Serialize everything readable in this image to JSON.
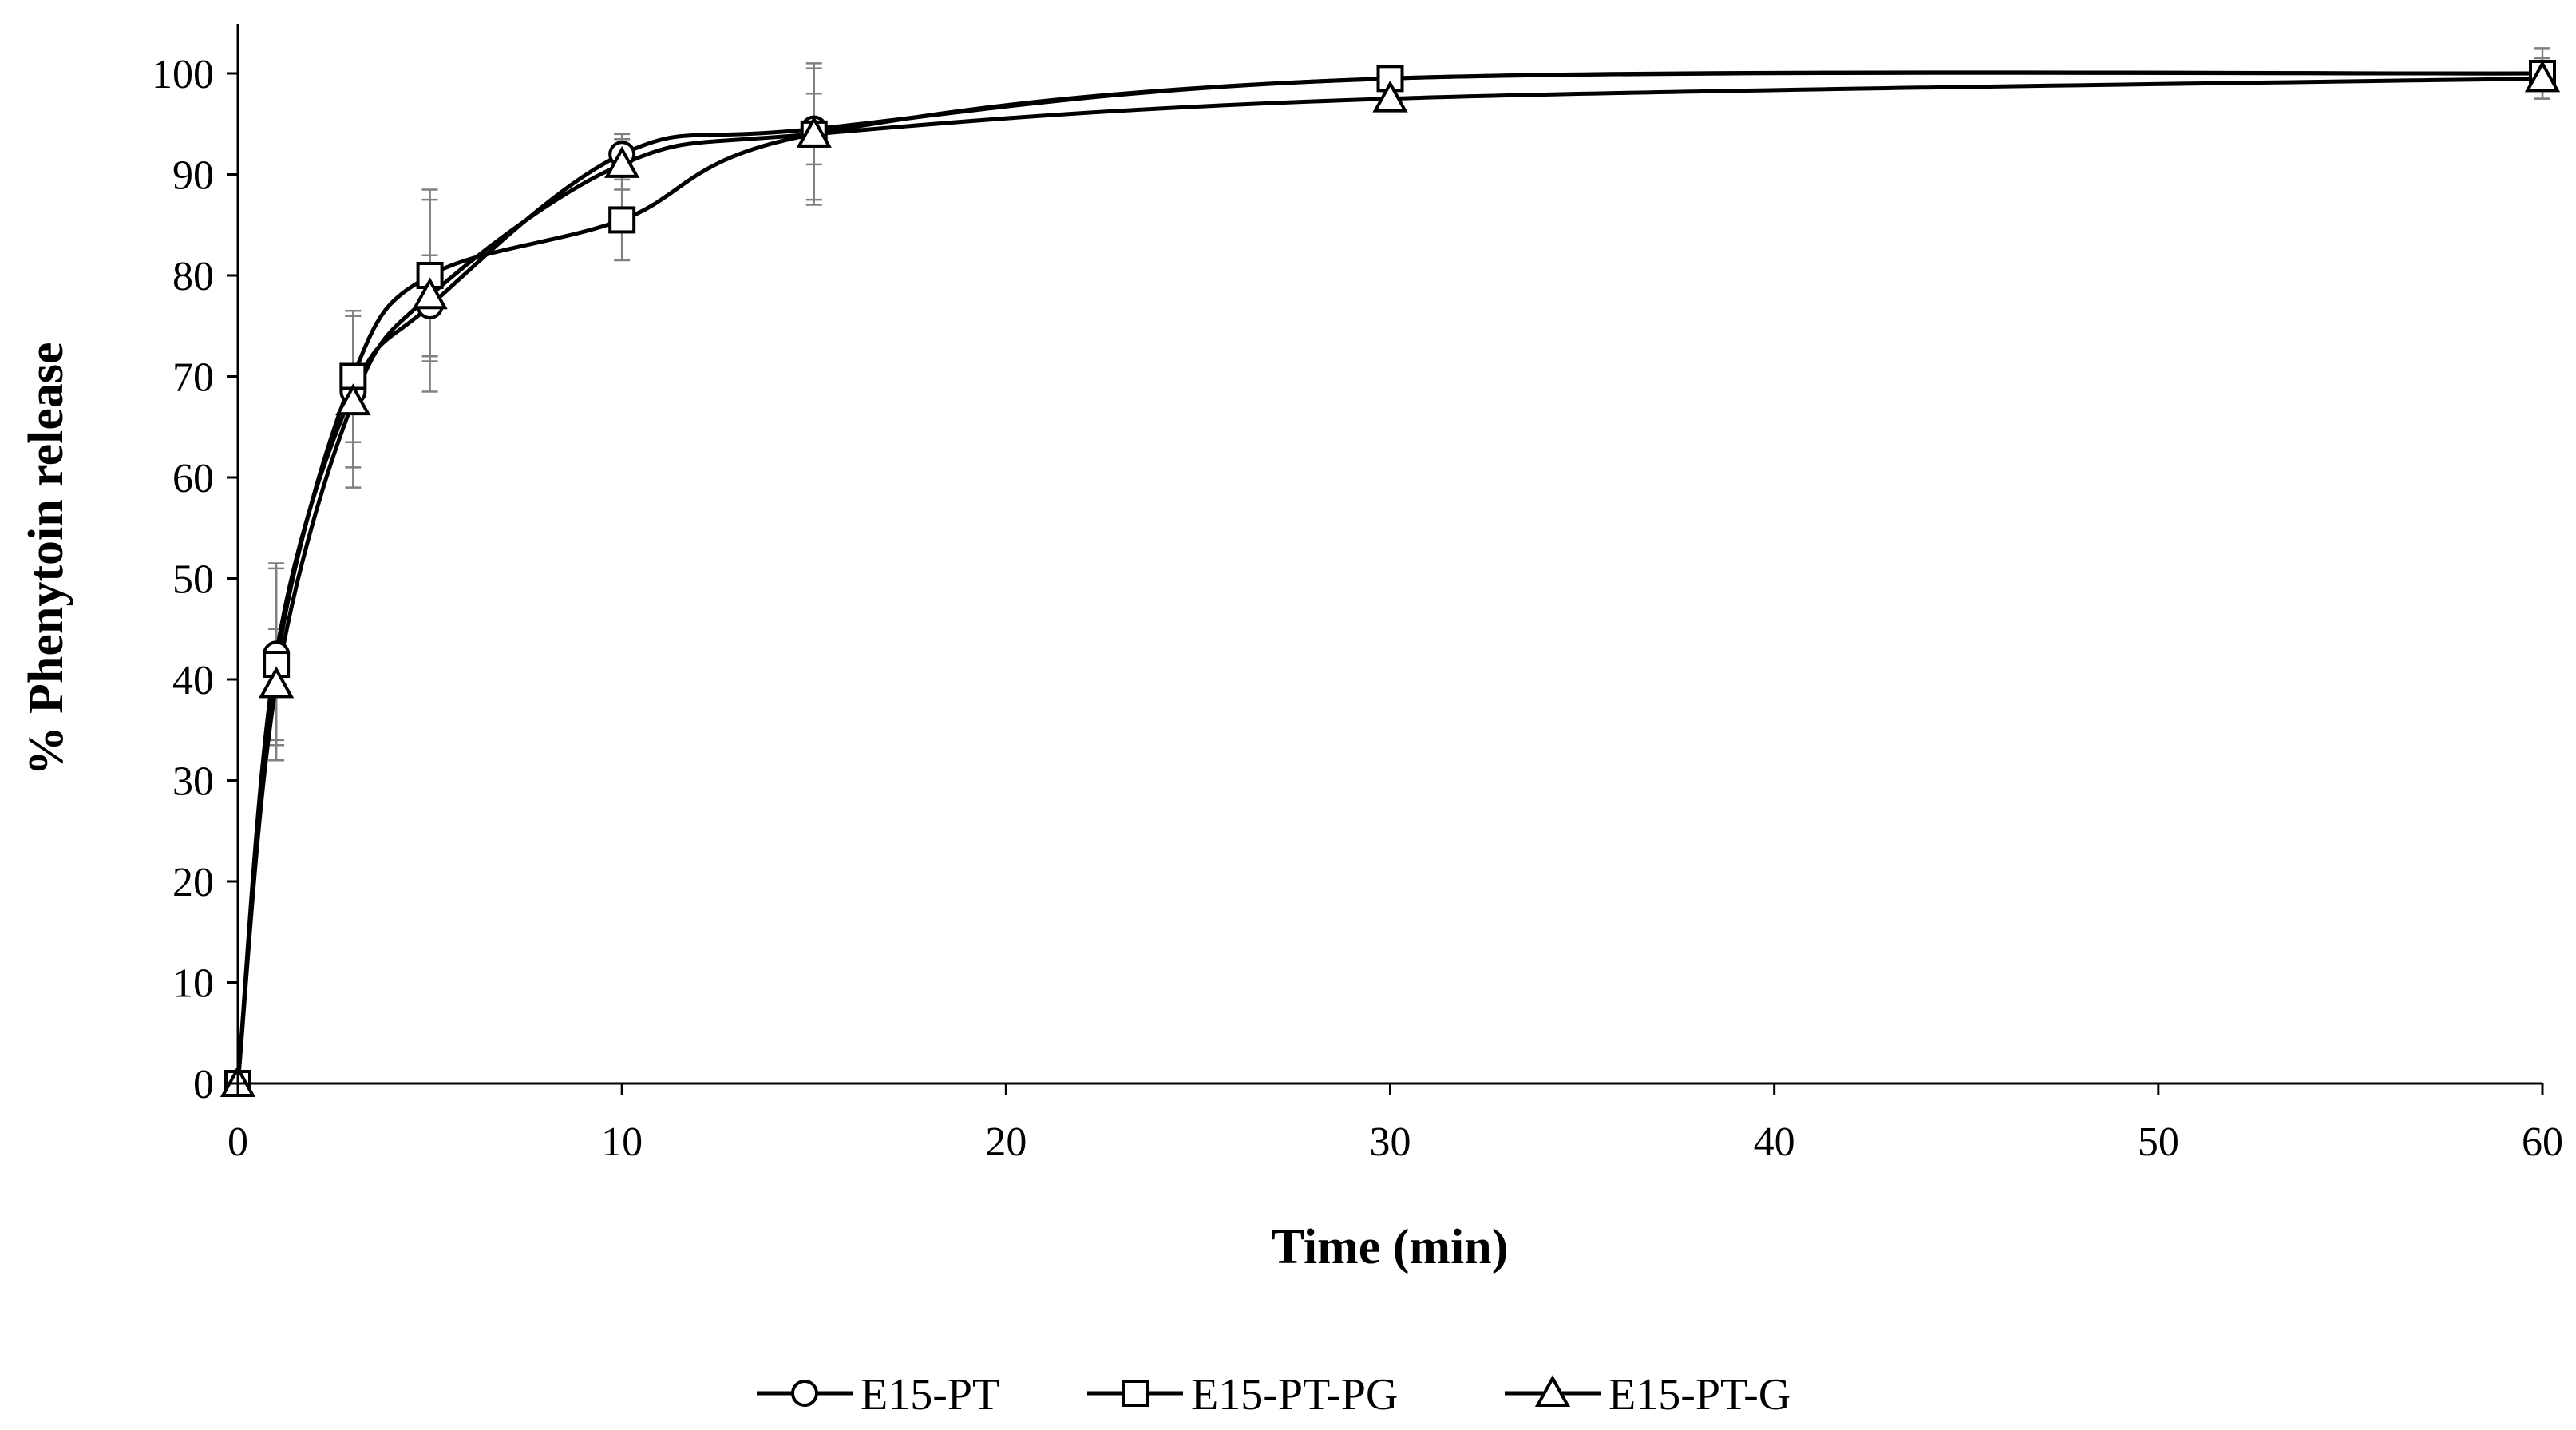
{
  "chart_data": {
    "type": "line",
    "title": "",
    "xlabel": "Time (min)",
    "ylabel": "% Phenytoin release",
    "xlim": [
      0,
      60
    ],
    "ylim": [
      0,
      100
    ],
    "xticks": [
      0,
      10,
      20,
      30,
      40,
      50,
      60
    ],
    "yticks": [
      0,
      10,
      20,
      30,
      40,
      50,
      60,
      70,
      80,
      90,
      100
    ],
    "grid": false,
    "legend_position": "bottom",
    "line_color": "#000000",
    "error_bar_color": "#808080",
    "x": [
      0,
      1,
      3,
      5,
      10,
      15,
      30,
      60
    ],
    "series": [
      {
        "name": "E15-PT",
        "marker": "circle",
        "values": [
          0,
          42.5,
          68.5,
          77,
          92,
          94.5,
          99.5,
          100
        ],
        "errors": [
          0,
          9,
          7.5,
          5,
          2,
          3.5,
          0.5,
          1
        ]
      },
      {
        "name": "E15-PT-PG",
        "marker": "square",
        "values": [
          0,
          41.5,
          70,
          80,
          85.5,
          94,
          99.5,
          100
        ],
        "errors": [
          0,
          9.5,
          6.5,
          8.5,
          4,
          7,
          0.5,
          2.5
        ]
      },
      {
        "name": "E15-PT-G",
        "marker": "triangle",
        "values": [
          0,
          39.5,
          67.5,
          78,
          91,
          94,
          97.5,
          99.5
        ],
        "errors": [
          0,
          5.5,
          8.5,
          9.5,
          2.5,
          6.5,
          0.5,
          2
        ]
      }
    ]
  }
}
